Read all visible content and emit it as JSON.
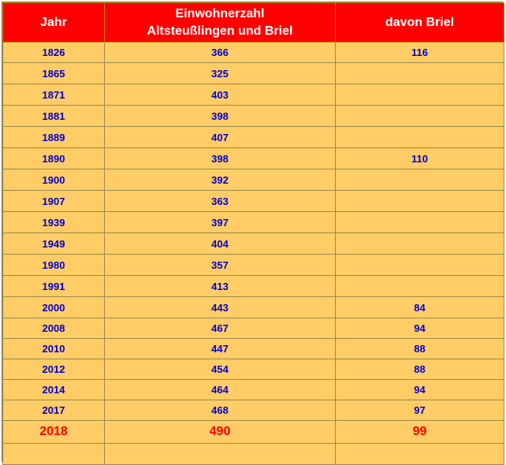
{
  "table": {
    "headers": {
      "col1": "Jahr",
      "col2_line1": "Einwohnerzahl",
      "col2_line2": "Altsteußlingen und Briel",
      "col3": "davon Briel"
    },
    "rows": [
      {
        "jahr": "1826",
        "einwohner": "366",
        "briel": "116"
      },
      {
        "jahr": "1865",
        "einwohner": "325",
        "briel": ""
      },
      {
        "jahr": "1871",
        "einwohner": "403",
        "briel": ""
      },
      {
        "jahr": "1881",
        "einwohner": "398",
        "briel": ""
      },
      {
        "jahr": "1889",
        "einwohner": "407",
        "briel": ""
      },
      {
        "jahr": "1890",
        "einwohner": "398",
        "briel": "110"
      },
      {
        "jahr": "1900",
        "einwohner": "392",
        "briel": ""
      },
      {
        "jahr": "1907",
        "einwohner": "363",
        "briel": ""
      },
      {
        "jahr": "1939",
        "einwohner": "397",
        "briel": ""
      },
      {
        "jahr": "1949",
        "einwohner": "404",
        "briel": ""
      },
      {
        "jahr": "1980",
        "einwohner": "357",
        "briel": ""
      },
      {
        "jahr": "1991",
        "einwohner": "413",
        "briel": ""
      },
      {
        "jahr": "2000",
        "einwohner": "443",
        "briel": "84"
      },
      {
        "jahr": "2008",
        "einwohner": "467",
        "briel": "94"
      },
      {
        "jahr": "2010",
        "einwohner": "447",
        "briel": "88"
      },
      {
        "jahr": "2012",
        "einwohner": "454",
        "briel": "88"
      },
      {
        "jahr": "2014",
        "einwohner": "464",
        "briel": "94"
      },
      {
        "jahr": "2017",
        "einwohner": "468",
        "briel": "97"
      }
    ],
    "highlight_row": {
      "jahr": "2018",
      "einwohner": "490",
      "briel": "99"
    },
    "colors": {
      "header_bg": "#ff0000",
      "header_text": "#ffffff",
      "cell_bg": "#ffcc66",
      "cell_text": "#0000cc",
      "highlight_text": "#ff0000"
    }
  }
}
